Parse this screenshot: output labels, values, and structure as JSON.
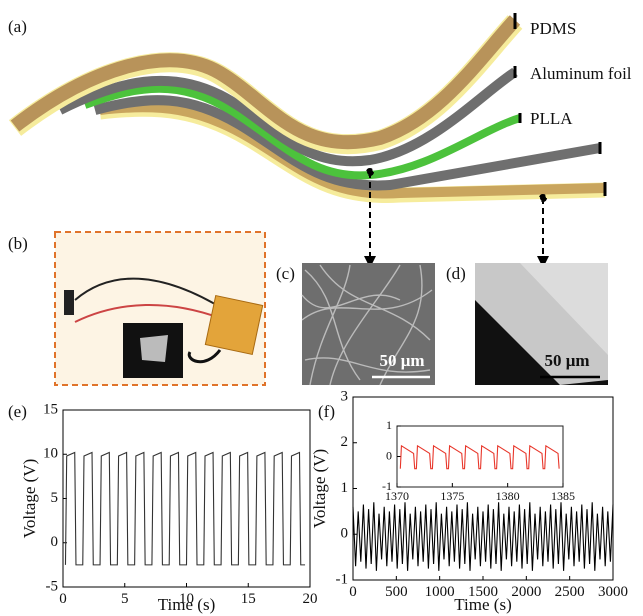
{
  "figure": {
    "panels": [
      "(a)",
      "(b)",
      "(c)",
      "(d)",
      "(e)",
      "(f)"
    ],
    "layer_labels": [
      "PDMS",
      "Aluminum foil",
      "PLLA"
    ],
    "scale_bars": [
      "50 μm",
      "50 μm"
    ]
  },
  "chart_data": [
    {
      "type": "line",
      "xlabel": "Time (s)",
      "ylabel": "Voltage (V)",
      "color": "#333333",
      "xlim": [
        0,
        20
      ],
      "xticks": [
        0,
        5,
        10,
        15,
        20
      ],
      "ylim": [
        -5,
        15
      ],
      "yticks": [
        -5,
        0,
        5,
        10,
        15
      ],
      "x": [
        0.2,
        0.3,
        0.95,
        1.05,
        1.6,
        1.7,
        2.35,
        2.45,
        3.0,
        3.1,
        3.75,
        3.85,
        4.4,
        4.5,
        5.15,
        5.25,
        5.8,
        5.9,
        6.55,
        6.65,
        7.2,
        7.3,
        7.95,
        8.05,
        8.6,
        8.7,
        9.35,
        9.45,
        10.0,
        10.1,
        10.75,
        10.85,
        11.4,
        11.5,
        12.15,
        12.25,
        12.8,
        12.9,
        13.55,
        13.65,
        14.2,
        14.3,
        14.95,
        15.05,
        15.6,
        15.7,
        16.35,
        16.45,
        17.0,
        17.1,
        17.75,
        17.85,
        18.4,
        18.5,
        19.15,
        19.25,
        19.6
      ],
      "values": [
        -2.5,
        9.8,
        10.2,
        -2.5,
        -2.5,
        9.8,
        10.2,
        -2.5,
        -2.5,
        9.8,
        10.2,
        -2.5,
        -2.5,
        9.8,
        10.2,
        -2.5,
        -2.5,
        9.8,
        10.2,
        -2.5,
        -2.5,
        9.8,
        10.2,
        -2.5,
        -2.5,
        9.8,
        10.2,
        -2.5,
        -2.5,
        9.8,
        10.2,
        -2.5,
        -2.5,
        9.8,
        10.2,
        -2.5,
        -2.5,
        9.8,
        10.2,
        -2.5,
        -2.5,
        9.8,
        10.2,
        -2.5,
        -2.5,
        9.8,
        10.2,
        -2.5,
        -2.5,
        9.8,
        10.2,
        -2.5,
        -2.5,
        9.8,
        10.2,
        -2.5,
        -2.5
      ]
    },
    {
      "type": "line",
      "xlabel": "Time (s)",
      "ylabel": "Voltage (V)",
      "color": "#000000",
      "xlim": [
        0,
        3000
      ],
      "xticks": [
        0,
        500,
        1000,
        1500,
        2000,
        2500,
        3000
      ],
      "ylim": [
        -1,
        3
      ],
      "yticks": [
        -1,
        0,
        1,
        2,
        3
      ],
      "x": [
        0,
        30,
        60,
        90,
        120,
        150,
        180,
        210,
        240,
        270,
        300,
        330,
        360,
        390,
        420,
        450,
        480,
        510,
        540,
        570,
        600,
        630,
        660,
        690,
        720,
        750,
        780,
        810,
        840,
        870,
        900,
        930,
        960,
        990,
        1020,
        1050,
        1080,
        1110,
        1140,
        1170,
        1200,
        1230,
        1260,
        1290,
        1320,
        1350,
        1380,
        1410,
        1440,
        1470,
        1500,
        1530,
        1560,
        1590,
        1620,
        1650,
        1680,
        1710,
        1740,
        1770,
        1800,
        1830,
        1860,
        1890,
        1920,
        1950,
        1980,
        2010,
        2040,
        2070,
        2100,
        2130,
        2160,
        2190,
        2220,
        2250,
        2280,
        2310,
        2340,
        2370,
        2400,
        2430,
        2460,
        2490,
        2520,
        2550,
        2580,
        2610,
        2640,
        2670,
        2700,
        2730,
        2760,
        2790,
        2820,
        2850,
        2880,
        2910,
        2940,
        2970,
        3000
      ],
      "values": [
        0.6,
        -0.7,
        0.5,
        -0.6,
        0.65,
        -0.75,
        0.55,
        -0.65,
        0.7,
        -0.8,
        0.45,
        -0.55,
        0.6,
        -0.7,
        0.5,
        -0.6,
        0.65,
        -0.75,
        0.55,
        -0.65,
        0.7,
        -0.8,
        0.45,
        -0.55,
        0.6,
        -0.7,
        0.5,
        -0.6,
        0.65,
        -0.75,
        0.55,
        -0.65,
        0.7,
        -0.8,
        0.45,
        -0.55,
        0.6,
        -0.7,
        0.5,
        -0.6,
        0.65,
        -0.75,
        0.55,
        -0.65,
        0.7,
        -0.8,
        0.45,
        -0.55,
        0.6,
        -0.7,
        0.5,
        -0.6,
        0.65,
        -0.75,
        0.55,
        -0.65,
        0.7,
        -0.8,
        0.45,
        -0.55,
        0.6,
        -0.7,
        0.5,
        -0.6,
        0.65,
        -0.75,
        0.55,
        -0.65,
        0.7,
        -0.8,
        0.45,
        -0.55,
        0.6,
        -0.7,
        0.5,
        -0.6,
        0.65,
        -0.75,
        0.55,
        -0.65,
        0.7,
        -0.8,
        0.45,
        -0.55,
        0.6,
        -0.7,
        0.5,
        -0.6,
        0.65,
        -0.75,
        0.55,
        -0.65,
        0.7,
        -0.8,
        0.45,
        -0.55,
        0.6,
        -0.7,
        0.5,
        -0.6,
        0.65
      ]
    },
    {
      "type": "line",
      "color": "#e8362a",
      "xlim": [
        1370,
        1385
      ],
      "xticks": [
        1370,
        1375,
        1380,
        1385
      ],
      "ylim": [
        -1,
        1
      ],
      "yticks": [
        -1,
        0,
        1
      ],
      "x": [
        1370.3,
        1370.4,
        1371.5,
        1371.6,
        1371.75,
        1371.85,
        1372.95,
        1373.05,
        1373.2,
        1373.3,
        1374.4,
        1374.5,
        1374.65,
        1374.75,
        1375.85,
        1375.95,
        1376.1,
        1376.2,
        1377.3,
        1377.4,
        1377.55,
        1377.65,
        1378.75,
        1378.85,
        1379.0,
        1379.1,
        1380.2,
        1380.3,
        1380.45,
        1380.55,
        1381.65,
        1381.75,
        1381.9,
        1382.0,
        1383.1,
        1383.2,
        1383.35,
        1383.45,
        1384.55,
        1384.65
      ],
      "values": [
        -0.4,
        0.35,
        0.1,
        -0.4,
        -0.4,
        0.35,
        0.1,
        -0.4,
        -0.4,
        0.35,
        0.1,
        -0.4,
        -0.4,
        0.35,
        0.1,
        -0.4,
        -0.4,
        0.35,
        0.1,
        -0.4,
        -0.4,
        0.35,
        0.1,
        -0.4,
        -0.4,
        0.35,
        0.1,
        -0.4,
        -0.4,
        0.35,
        0.1,
        -0.4,
        -0.4,
        0.35,
        0.1,
        -0.4,
        -0.4,
        0.35,
        0.1,
        -0.4
      ]
    }
  ]
}
